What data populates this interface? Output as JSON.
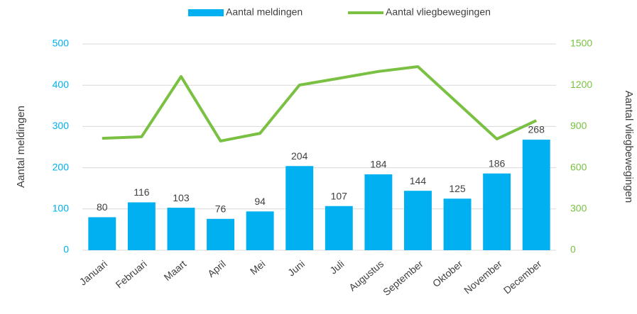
{
  "chart_data": {
    "type": "bar",
    "categories": [
      "Januari",
      "Februari",
      "Maart",
      "April",
      "Mei",
      "Juni",
      "Juli",
      "Augustus",
      "September",
      "Oktober",
      "November",
      "December"
    ],
    "series": [
      {
        "name": "Aantal meldingen",
        "color": "#00b0f0",
        "type": "bar",
        "values": [
          80,
          116,
          103,
          76,
          94,
          204,
          107,
          184,
          144,
          125,
          186,
          268
        ]
      },
      {
        "name": "Aantal vliegbewegingen",
        "color": "#7ac143",
        "type": "line",
        "axis": "y2",
        "values": [
          814,
          825,
          1263,
          794,
          850,
          1201,
          1250,
          1300,
          1335,
          1072,
          809,
          943
        ]
      }
    ],
    "ylabel": "Aantal meldingen",
    "y2label": "Aantal vliegbewegingen",
    "ylim": [
      0,
      500
    ],
    "yticks": [
      0,
      100,
      200,
      300,
      400,
      500
    ],
    "y2lim": [
      0,
      1500
    ],
    "y2ticks": [
      0,
      300,
      600,
      900,
      1200,
      1500
    ],
    "grid": true,
    "legend": "top"
  }
}
